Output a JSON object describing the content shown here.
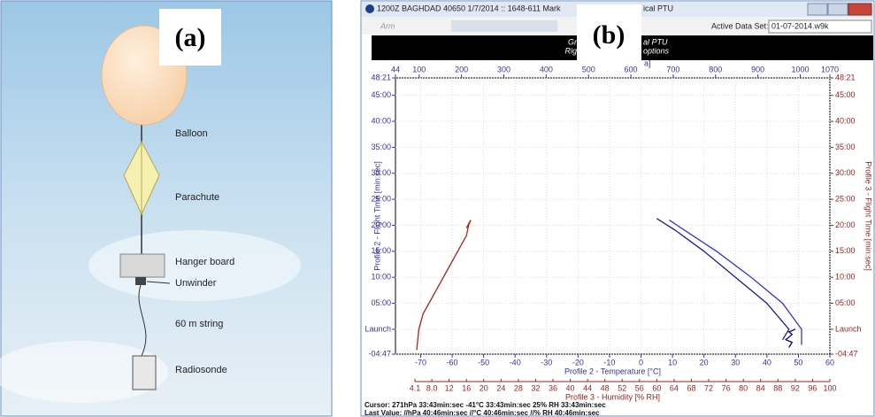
{
  "panel_a": {
    "label": "(a)",
    "parts": [
      "Balloon",
      "Parachute",
      "Hanger board",
      "Unwinder",
      "60 m string",
      "Radiosonde"
    ]
  },
  "panel_b": {
    "label": "(b)",
    "window_title": "1200Z  BAGHDAD  40650  1/7/2014 :: 1648-611 Mark",
    "window_title_end": "ical PTU",
    "toolbar": {
      "arm": "Arm",
      "active_data_set_label": "Active Data Set:",
      "active_data_set": "01-07-2014.w9k"
    },
    "header": [
      "Gr",
      "al PTU",
      "Rig",
      "options"
    ],
    "status": [
      "Cursor: 271hPa 33:43min:sec -41°C 33:43min:sec 25% RH 33:43min:sec",
      "Last Value: //hPa 40:46min:sec //°C 40:46min:sec //% RH 40:46min:sec"
    ]
  },
  "chart_data": {
    "type": "line",
    "grid": true,
    "xlim": [
      -78,
      60
    ],
    "xticks": [
      -70,
      -60,
      -50,
      -40,
      -30,
      -20,
      -10,
      0,
      10,
      20,
      30,
      40,
      50,
      60
    ],
    "x_label": "Profile 2 - Temperature [°C]",
    "x2lim": [
      4.1,
      100
    ],
    "x2ticks": [
      4.1,
      {
        "value": 8,
        "label": "8.0"
      },
      12,
      16,
      20,
      24,
      28,
      32,
      36,
      40,
      44,
      48,
      52,
      56,
      60,
      64,
      68,
      72,
      76,
      80,
      84,
      88,
      92,
      96,
      100
    ],
    "x2_label": "Profile 3 - Humidity [% RH]",
    "x3lim": [
      44,
      1070
    ],
    "x3ticks": [
      44,
      100,
      200,
      300,
      400,
      500,
      600,
      700,
      800,
      900,
      1000,
      1070
    ],
    "x3_label": "a]",
    "ylim": [
      -4.78,
      48.35
    ],
    "yticks": [
      {
        "value": 48.35,
        "label": "48:21"
      },
      {
        "value": 45,
        "label": "45:00"
      },
      {
        "value": 40,
        "label": "40:00"
      },
      {
        "value": 35,
        "label": "35:00"
      },
      {
        "value": 30,
        "label": "30:00"
      },
      {
        "value": 25,
        "label": "25:00"
      },
      {
        "value": 20,
        "label": "20:00"
      },
      {
        "value": 15,
        "label": "15:00"
      },
      {
        "value": 10,
        "label": "10:00"
      },
      {
        "value": 5,
        "label": "05:00"
      },
      {
        "value": 0,
        "label": "Launch"
      },
      {
        "value": -4.78,
        "label": "-04:47"
      }
    ],
    "y_label": "Profile 2 - Flight Time [min:sec]",
    "y2_label": "Profile 3 - Flight Time [min:sec]",
    "series": [
      {
        "color": "#3333dd",
        "x": [
          51,
          51,
          45,
          35,
          24,
          14,
          9
        ],
        "values": [
          -3,
          0,
          5,
          10,
          15,
          19,
          21
        ]
      },
      {
        "color": "#1a1a99",
        "x": [
          45,
          47,
          40,
          30,
          20,
          11,
          5
        ],
        "values": [
          -2,
          0,
          5,
          10,
          15,
          19,
          21.3
        ]
      },
      {
        "color": "#0a0a66",
        "x": [
          47,
          48,
          46,
          48,
          47,
          49
        ],
        "values": [
          -3.5,
          -2.5,
          -2,
          -1,
          -0.5,
          0
        ]
      },
      {
        "color": "#aa2222",
        "axis": "x2",
        "x": [
          4.5,
          5,
          6,
          8,
          10,
          12,
          14,
          16,
          16.5,
          17,
          16
        ],
        "values": [
          -4,
          0,
          3,
          6,
          9,
          12,
          15,
          18,
          20,
          21,
          19.5
        ]
      }
    ]
  }
}
